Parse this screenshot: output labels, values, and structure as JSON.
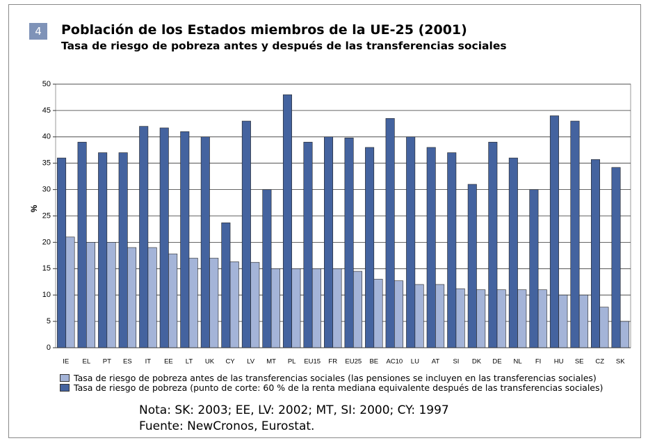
{
  "chart_data": {
    "type": "bar",
    "badge": "4",
    "title": "Población de los Estados miembros de la UE-25 (2001)",
    "subtitle": "Tasa de riesgo de pobreza antes y después de las transferencias sociales",
    "y_label": "%",
    "categories": [
      "IE",
      "EL",
      "PT",
      "ES",
      "IT",
      "EE",
      "LT",
      "UK",
      "CY",
      "LV",
      "MT",
      "PL",
      "EU15",
      "FR",
      "EU25",
      "BE",
      "AC10",
      "LU",
      "AT",
      "SI",
      "DK",
      "DE",
      "NL",
      "FI",
      "HU",
      "SE",
      "CZ",
      "SK"
    ],
    "series": [
      {
        "name": "Tasa de riesgo de pobreza antes de las transferencias sociales (las pensiones se incluyen en las transferencias sociales)",
        "color": "#a4b4d8",
        "values": [
          21,
          20,
          20,
          19,
          19,
          17.8,
          17,
          17,
          16.3,
          16.2,
          15,
          15,
          15,
          15,
          14.5,
          13,
          12.7,
          12,
          12,
          11.2,
          11,
          11,
          11,
          11,
          10,
          10,
          7.7,
          5
        ]
      },
      {
        "name": "Tasa de riesgo de pobreza (punto de corte: 60 % de la renta mediana equivalente después de las transferencias sociales)",
        "color": "#44639f",
        "values": [
          36,
          39,
          37,
          37,
          42,
          41.7,
          41,
          40,
          23.7,
          43,
          30,
          48,
          39,
          40,
          39.8,
          38,
          43.5,
          40,
          38,
          37,
          31,
          39,
          36,
          30,
          44,
          43,
          35.7,
          34.2
        ]
      }
    ],
    "ylim": [
      0,
      50
    ],
    "yticks": [
      0,
      5,
      10,
      15,
      20,
      25,
      30,
      35,
      40,
      45,
      50
    ],
    "grid": true,
    "note": "Nota: SK: 2003; EE, LV: 2002; MT, SI: 2000; CY: 1997",
    "source": "Fuente: NewCronos, Eurostat."
  }
}
